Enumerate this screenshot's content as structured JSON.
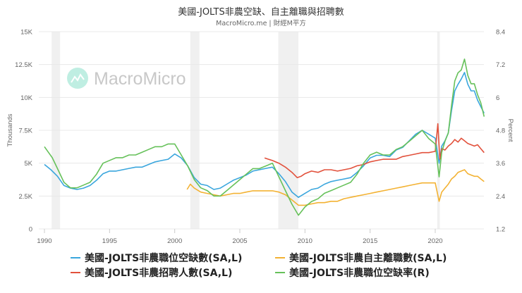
{
  "header": {
    "title": "美國-JOLTS非農空缺、自主離職與招聘數",
    "subtitle": "MacroMicro.me | 財經M平方"
  },
  "watermark": {
    "text": "MacroMicro",
    "icon": "macromicro-logo-icon"
  },
  "colors": {
    "openings": "#3aa6dd",
    "quits": "#f3b233",
    "hires": "#e2513c",
    "rate": "#66c15a",
    "recession": "#f0f0f0",
    "grid": "#e8e8e8",
    "axis_text": "#666666"
  },
  "legend": [
    {
      "label": "美國-JOLTS非農職位空缺數(SA,L)",
      "color": "#3aa6dd"
    },
    {
      "label": "美國-JOLTS非農自主離職數(SA,L)",
      "color": "#f3b233"
    },
    {
      "label": "美國-JOLTS非農招聘人數(SA,L)",
      "color": "#e2513c"
    },
    {
      "label": "美國-JOLTS非農職位空缺率(R)",
      "color": "#66c15a"
    }
  ],
  "chart_data": {
    "type": "line",
    "title": "美國-JOLTS非農空缺、自主離職與招聘數",
    "subtitle": "MacroMicro.me | 財經M平方",
    "xlabel": "",
    "ylabel": "Thousands",
    "ylabel_right": "Percent",
    "xlim": [
      1990,
      2023.75
    ],
    "ylim": [
      0,
      15000
    ],
    "ylim_right": [
      1.2,
      8.4
    ],
    "x_ticks": [
      "1990",
      "1995",
      "2000",
      "2005",
      "2010",
      "2015",
      "2020"
    ],
    "y_ticks": [
      "0",
      "2.5K",
      "5K",
      "7.5K",
      "10K",
      "12.5K",
      "15K"
    ],
    "y_ticks_right": [
      "1.2",
      "2.4",
      "3.6",
      "4.8",
      "6",
      "7.2",
      "8.4"
    ],
    "grid": true,
    "legend_position": "bottom",
    "recessions": [
      [
        1990.55,
        1991.2
      ],
      [
        2001.2,
        2001.9
      ],
      [
        2007.95,
        2009.5
      ],
      [
        2020.15,
        2020.35
      ]
    ],
    "series": [
      {
        "name": "美國-JOLTS非農職位空缺數(SA,L)",
        "axis": "left",
        "x": [
          1990.0,
          1990.5,
          1991.0,
          1991.5,
          1992.0,
          1992.5,
          1993.0,
          1993.5,
          1994.0,
          1994.5,
          1995.0,
          1995.5,
          1996.0,
          1996.5,
          1997.0,
          1997.5,
          1998.0,
          1998.5,
          1999.0,
          1999.5,
          2000.0,
          2000.5,
          2001.0,
          2001.5,
          2002.0,
          2002.5,
          2003.0,
          2003.5,
          2004.0,
          2004.5,
          2005.0,
          2005.5,
          2006.0,
          2006.5,
          2007.0,
          2007.5,
          2008.0,
          2008.5,
          2009.0,
          2009.5,
          2010.0,
          2010.5,
          2011.0,
          2011.5,
          2012.0,
          2012.5,
          2013.0,
          2013.5,
          2014.0,
          2014.5,
          2015.0,
          2015.5,
          2016.0,
          2016.5,
          2017.0,
          2017.5,
          2018.0,
          2018.5,
          2019.0,
          2019.5,
          2020.0,
          2020.3,
          2020.5,
          2020.75,
          2021.0,
          2021.25,
          2021.5,
          2021.75,
          2022.0,
          2022.25,
          2022.5,
          2022.75,
          2023.0,
          2023.25,
          2023.5,
          2023.75
        ],
        "values": [
          4900,
          4500,
          4000,
          3300,
          3100,
          3000,
          3100,
          3300,
          3700,
          4200,
          4400,
          4400,
          4500,
          4600,
          4700,
          4700,
          4900,
          5100,
          5200,
          5300,
          5700,
          5400,
          4800,
          3900,
          3400,
          3300,
          3000,
          3100,
          3400,
          3700,
          3900,
          4100,
          4400,
          4500,
          4600,
          4700,
          4200,
          3600,
          2800,
          2400,
          2700,
          3000,
          3100,
          3400,
          3600,
          3700,
          3800,
          3900,
          4300,
          4800,
          5400,
          5600,
          5600,
          5500,
          6000,
          6200,
          6700,
          7200,
          7500,
          7200,
          6900,
          5000,
          6300,
          6700,
          7300,
          9000,
          10500,
          11000,
          11400,
          11900,
          11000,
          10500,
          10500,
          9800,
          9300,
          8800
        ]
      },
      {
        "name": "美國-JOLTS非農自主離職數(SA,L)",
        "axis": "left",
        "x": [
          2000.95,
          2001.2,
          2001.5,
          2002.0,
          2002.5,
          2003.0,
          2003.5,
          2004.0,
          2004.5,
          2005.0,
          2005.5,
          2006.0,
          2006.5,
          2007.0,
          2007.5,
          2008.0,
          2008.5,
          2009.0,
          2009.5,
          2010.0,
          2010.5,
          2011.0,
          2011.5,
          2012.0,
          2012.5,
          2013.0,
          2013.5,
          2014.0,
          2014.5,
          2015.0,
          2015.5,
          2016.0,
          2016.5,
          2017.0,
          2017.5,
          2018.0,
          2018.5,
          2019.0,
          2019.5,
          2020.0,
          2020.3,
          2020.5,
          2020.75,
          2021.0,
          2021.25,
          2021.5,
          2021.75,
          2022.0,
          2022.25,
          2022.5,
          2022.75,
          2023.0,
          2023.25,
          2023.5,
          2023.75
        ],
        "values": [
          3000,
          3400,
          3100,
          2800,
          2700,
          2600,
          2500,
          2600,
          2700,
          2700,
          2800,
          2900,
          2900,
          2900,
          2900,
          2800,
          2600,
          2200,
          1800,
          1800,
          1900,
          2000,
          2000,
          2100,
          2100,
          2300,
          2400,
          2500,
          2600,
          2700,
          2800,
          2900,
          3000,
          3100,
          3200,
          3300,
          3400,
          3500,
          3500,
          3500,
          2100,
          2800,
          3100,
          3400,
          3800,
          4000,
          4300,
          4400,
          4500,
          4200,
          4100,
          4000,
          4000,
          3800,
          3600
        ]
      },
      {
        "name": "美國-JOLTS非農招聘人數(SA,L)",
        "axis": "left",
        "x": [
          2006.9,
          2007.2,
          2007.5,
          2008.0,
          2008.5,
          2009.0,
          2009.4,
          2009.7,
          2010.0,
          2010.5,
          2011.0,
          2011.5,
          2012.0,
          2012.5,
          2013.0,
          2013.5,
          2014.0,
          2014.5,
          2015.0,
          2015.5,
          2016.0,
          2016.5,
          2017.0,
          2017.5,
          2018.0,
          2018.5,
          2019.0,
          2019.5,
          2020.0,
          2020.2,
          2020.35,
          2020.5,
          2020.75,
          2021.0,
          2021.25,
          2021.5,
          2021.75,
          2022.0,
          2022.25,
          2022.5,
          2022.75,
          2023.0,
          2023.25,
          2023.5,
          2023.75
        ],
        "values": [
          5400,
          5300,
          5200,
          5000,
          4700,
          4300,
          3900,
          4000,
          4200,
          4400,
          4300,
          4500,
          4500,
          4400,
          4500,
          4600,
          4800,
          4900,
          5100,
          5200,
          5300,
          5300,
          5300,
          5500,
          5600,
          5700,
          5800,
          5800,
          5900,
          8000,
          5300,
          6100,
          6000,
          6300,
          6500,
          6800,
          6600,
          6900,
          6700,
          6500,
          6400,
          6300,
          6400,
          6100,
          5800
        ]
      },
      {
        "name": "美國-JOLTS非農職位空缺率(R)",
        "axis": "right",
        "x": [
          1990.0,
          1990.3,
          1990.6,
          1991.0,
          1991.5,
          1992.0,
          1992.5,
          1993.0,
          1993.5,
          1994.0,
          1994.5,
          1995.0,
          1995.5,
          1996.0,
          1996.5,
          1997.0,
          1997.5,
          1998.0,
          1998.5,
          1999.0,
          1999.5,
          2000.0,
          2000.5,
          2001.0,
          2001.5,
          2002.0,
          2002.5,
          2003.0,
          2003.5,
          2004.0,
          2004.5,
          2005.0,
          2005.5,
          2006.0,
          2006.5,
          2007.0,
          2007.5,
          2008.0,
          2008.5,
          2009.0,
          2009.5,
          2010.0,
          2010.5,
          2011.0,
          2011.5,
          2012.0,
          2012.5,
          2013.0,
          2013.5,
          2014.0,
          2014.5,
          2015.0,
          2015.5,
          2016.0,
          2016.5,
          2017.0,
          2017.5,
          2018.0,
          2018.5,
          2019.0,
          2019.5,
          2020.0,
          2020.3,
          2020.5,
          2020.75,
          2021.0,
          2021.25,
          2021.5,
          2021.75,
          2022.0,
          2022.25,
          2022.5,
          2022.75,
          2023.0,
          2023.25,
          2023.5,
          2023.75
        ],
        "values": [
          4.2,
          4.0,
          3.8,
          3.4,
          2.9,
          2.7,
          2.7,
          2.8,
          2.9,
          3.2,
          3.6,
          3.7,
          3.8,
          3.8,
          3.9,
          3.9,
          4.0,
          4.1,
          4.2,
          4.2,
          4.3,
          4.3,
          3.9,
          3.5,
          3.0,
          2.7,
          2.6,
          2.4,
          2.4,
          2.6,
          2.8,
          3.0,
          3.2,
          3.4,
          3.4,
          3.5,
          3.6,
          3.1,
          2.6,
          2.1,
          1.7,
          2.0,
          2.2,
          2.3,
          2.5,
          2.6,
          2.7,
          2.8,
          2.9,
          3.2,
          3.6,
          3.9,
          4.0,
          3.9,
          3.9,
          4.1,
          4.2,
          4.4,
          4.6,
          4.8,
          4.5,
          4.3,
          3.1,
          4.0,
          4.4,
          4.7,
          5.7,
          6.6,
          6.9,
          7.0,
          7.4,
          6.8,
          6.5,
          6.5,
          6.1,
          5.8,
          5.3
        ]
      }
    ]
  }
}
